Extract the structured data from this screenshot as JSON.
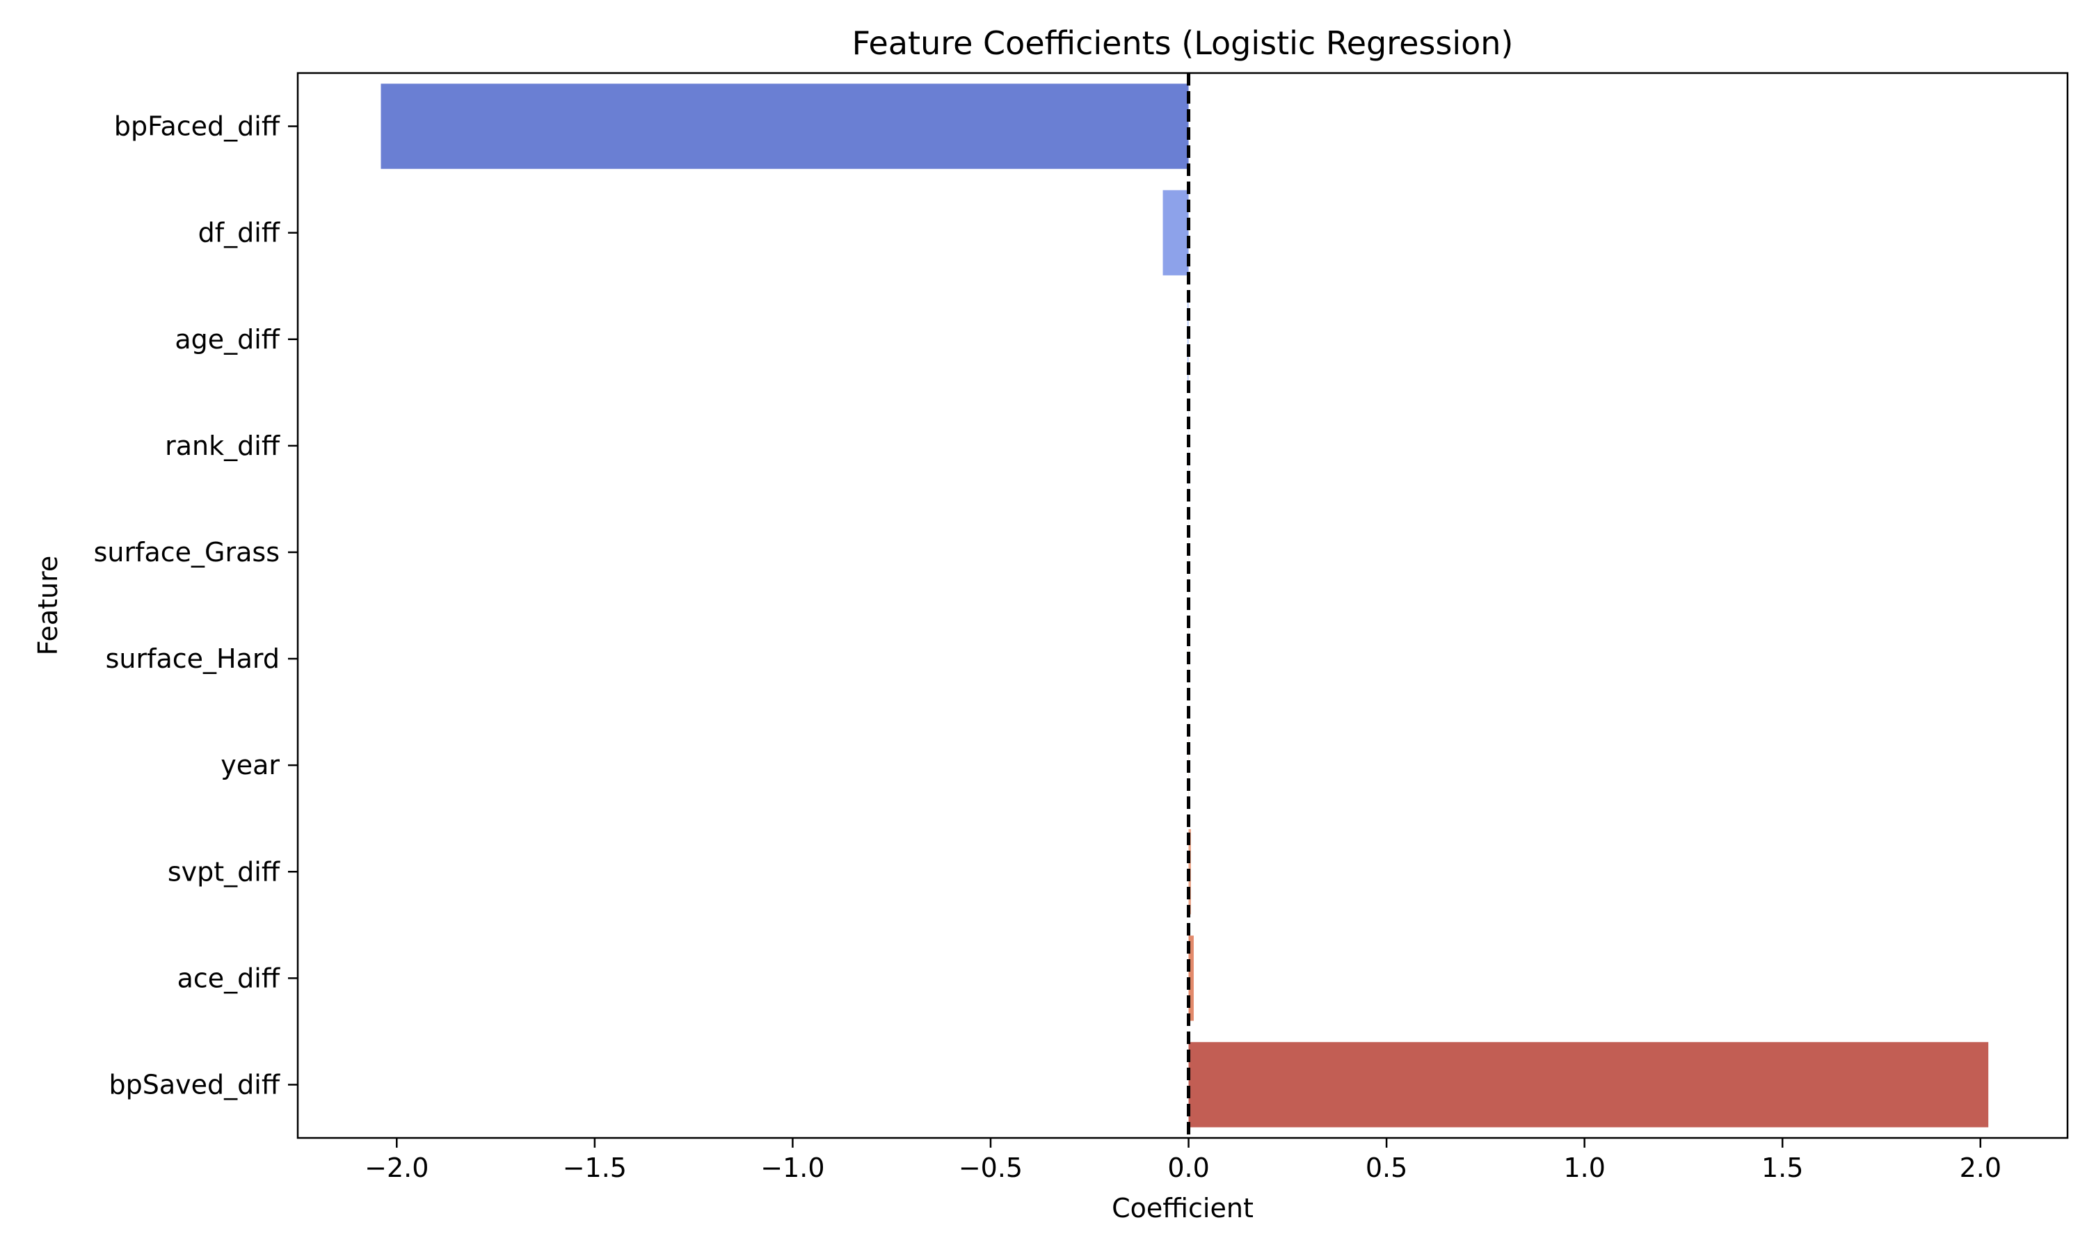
{
  "chart_data": {
    "type": "bar",
    "orientation": "horizontal",
    "title": "Feature Coefficients (Logistic Regression)",
    "xlabel": "Coefficient",
    "ylabel": "Feature",
    "categories": [
      "bpFaced_diff",
      "df_diff",
      "age_diff",
      "rank_diff",
      "surface_Grass",
      "surface_Hard",
      "year",
      "svpt_diff",
      "ace_diff",
      "bpSaved_diff"
    ],
    "values": [
      -2.04,
      -0.065,
      -0.003,
      -0.001,
      0.0,
      0.0,
      0.0,
      0.006,
      0.013,
      2.02
    ],
    "colors": [
      "#6a7fd3",
      "#8da2ea",
      "#b5c7f4",
      "#cfd9f7",
      "#e8e2de",
      "#ece0d8",
      "#eed3c5",
      "#eba386",
      "#e28a6b",
      "#c25e54"
    ],
    "xlim": [
      -2.25,
      2.22
    ],
    "xticks": [
      -2.0,
      -1.5,
      -1.0,
      -0.5,
      0.0,
      0.5,
      1.0,
      1.5,
      2.0
    ],
    "xtick_labels": [
      "−2.0",
      "−1.5",
      "−1.0",
      "−0.5",
      "0.0",
      "0.5",
      "1.0",
      "1.5",
      "2.0"
    ],
    "reference_line": 0.0,
    "grid": false,
    "legend": "none"
  }
}
